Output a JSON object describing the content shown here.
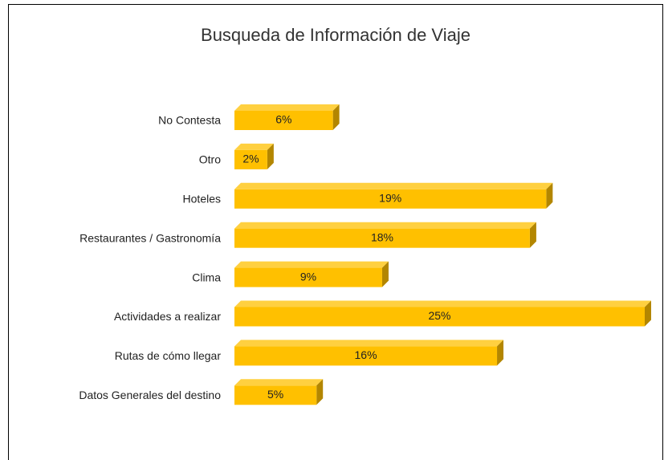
{
  "chart_data": {
    "type": "bar",
    "orientation": "horizontal",
    "title": "Busqueda de Información de Viaje",
    "categories": [
      "No Contesta",
      "Otro",
      "Hoteles",
      "Restaurantes / Gastronomía",
      "Clima",
      "Actividades a realizar",
      "Rutas de cómo llegar",
      "Datos Generales del destino"
    ],
    "values": [
      6,
      2,
      19,
      18,
      9,
      25,
      16,
      5
    ],
    "value_labels": [
      "6%",
      "2%",
      "19%",
      "18%",
      "9%",
      "25%",
      "16%",
      "5%"
    ],
    "color": "#ffc000"
  }
}
